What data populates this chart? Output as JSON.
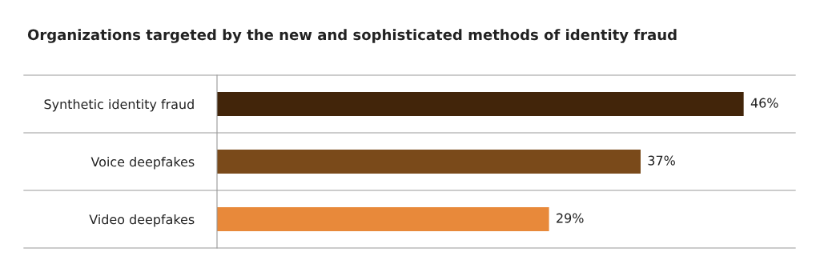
{
  "chart_data": {
    "type": "bar",
    "orientation": "horizontal",
    "title": "Organizations targeted by the new and sophisticated methods of identity fraud",
    "categories": [
      "Synthetic identity fraud",
      "Voice deepfakes",
      "Video deepfakes"
    ],
    "values": [
      46,
      37,
      29
    ],
    "value_labels": [
      "46%",
      "37%",
      "29%"
    ],
    "colors": [
      "#42250a",
      "#7a4a1a",
      "#e8893a"
    ],
    "xlim": [
      0,
      50.5
    ],
    "tick_labels": "y"
  }
}
